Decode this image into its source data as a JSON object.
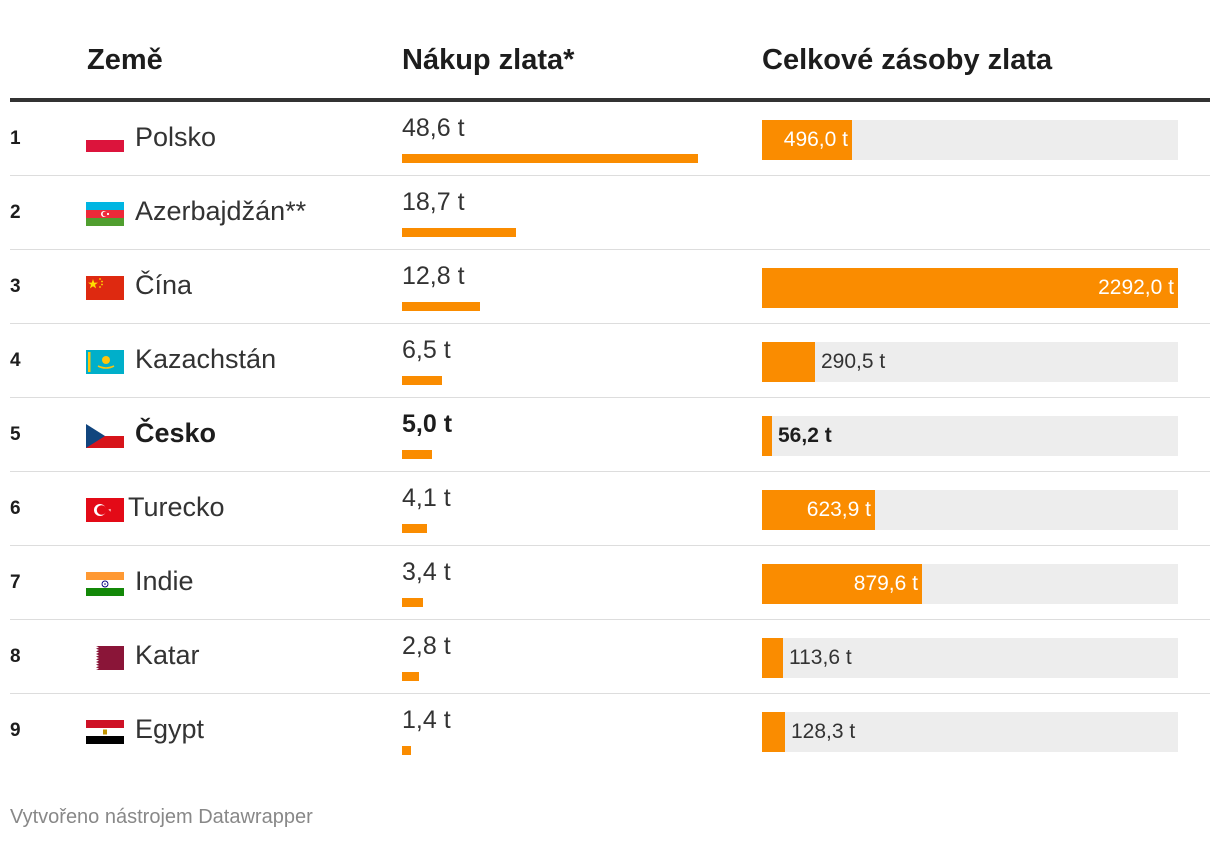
{
  "header": {
    "col_country": "Země",
    "col_purchase": "Nákup zlata*",
    "col_reserves": "Celkové zásoby zlata"
  },
  "footer": {
    "credit": "Vytvořeno nástrojem Datawrapper"
  },
  "colors": {
    "bar": "#fa8c00",
    "bar_background": "#ededed",
    "rule": "#333333"
  },
  "chart_data": {
    "type": "table",
    "columns": [
      "Země",
      "Nákup zlata*",
      "Celkové zásoby zlata"
    ],
    "units": "t",
    "purchase_max": 48.6,
    "reserves_max": 2292.0,
    "rows": [
      {
        "rank": "1",
        "country": "Polsko",
        "flag": "poland-flag",
        "purchase": 48.6,
        "purchase_label": "48,6 t",
        "reserves": 496.0,
        "reserves_label": "496,0 t",
        "highlight": false
      },
      {
        "rank": "2",
        "country": "Azerbajdžán**",
        "flag": "azerbaijan-flag",
        "purchase": 18.7,
        "purchase_label": "18,7 t",
        "reserves": null,
        "reserves_label": "",
        "highlight": false
      },
      {
        "rank": "3",
        "country": "Čína",
        "flag": "china-flag",
        "purchase": 12.8,
        "purchase_label": "12,8 t",
        "reserves": 2292.0,
        "reserves_label": "2292,0 t",
        "highlight": false
      },
      {
        "rank": "4",
        "country": "Kazachstán",
        "flag": "kazakhstan-flag",
        "purchase": 6.5,
        "purchase_label": "6,5 t",
        "reserves": 290.5,
        "reserves_label": "290,5 t",
        "highlight": false
      },
      {
        "rank": "5",
        "country": "Česko",
        "flag": "czechia-flag",
        "purchase": 5.0,
        "purchase_label": "5,0 t",
        "reserves": 56.2,
        "reserves_label": "56,2 t",
        "highlight": true
      },
      {
        "rank": "6",
        "country": "Turecko",
        "flag": "turkey-flag",
        "purchase": 4.1,
        "purchase_label": "4,1 t",
        "reserves": 623.9,
        "reserves_label": "623,9 t",
        "highlight": false
      },
      {
        "rank": "7",
        "country": "Indie",
        "flag": "india-flag",
        "purchase": 3.4,
        "purchase_label": "3,4 t",
        "reserves": 879.6,
        "reserves_label": "879,6 t",
        "highlight": false
      },
      {
        "rank": "8",
        "country": "Katar",
        "flag": "qatar-flag",
        "purchase": 2.8,
        "purchase_label": "2,8 t",
        "reserves": 113.6,
        "reserves_label": "113,6 t",
        "highlight": false
      },
      {
        "rank": "9",
        "country": "Egypt",
        "flag": "egypt-flag",
        "purchase": 1.4,
        "purchase_label": "1,4 t",
        "reserves": 128.3,
        "reserves_label": "128,3 t",
        "highlight": false
      }
    ]
  }
}
